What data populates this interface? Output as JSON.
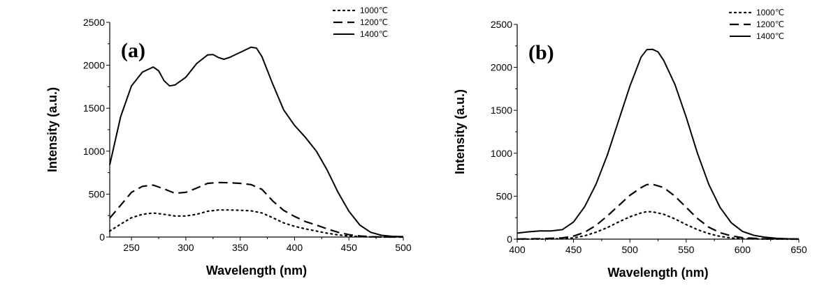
{
  "chart_data": [
    {
      "type": "line",
      "panel_label": "(a)",
      "xlabel": "Wavelength (nm)",
      "ylabel": "Intensity (a.u.)",
      "xlim": [
        230,
        500
      ],
      "ylim": [
        0,
        2500
      ],
      "xticks": [
        250,
        300,
        350,
        400,
        450,
        500
      ],
      "yticks": [
        0,
        500,
        1000,
        1500,
        2000,
        2500
      ],
      "legend_position": "top-right",
      "grid": false,
      "series": [
        {
          "name": "1000℃",
          "style": "dotted",
          "points": [
            [
              230,
              70
            ],
            [
              240,
              150
            ],
            [
              250,
              225
            ],
            [
              260,
              265
            ],
            [
              270,
              280
            ],
            [
              280,
              265
            ],
            [
              290,
              245
            ],
            [
              300,
              245
            ],
            [
              310,
              265
            ],
            [
              320,
              300
            ],
            [
              330,
              315
            ],
            [
              340,
              315
            ],
            [
              350,
              312
            ],
            [
              360,
              305
            ],
            [
              370,
              280
            ],
            [
              380,
              225
            ],
            [
              390,
              165
            ],
            [
              400,
              125
            ],
            [
              410,
              95
            ],
            [
              420,
              70
            ],
            [
              430,
              45
            ],
            [
              440,
              25
            ],
            [
              450,
              12
            ],
            [
              460,
              5
            ],
            [
              470,
              2
            ],
            [
              480,
              0
            ],
            [
              490,
              0
            ],
            [
              500,
              0
            ]
          ]
        },
        {
          "name": "1200℃",
          "style": "dashed",
          "points": [
            [
              230,
              220
            ],
            [
              240,
              370
            ],
            [
              250,
              520
            ],
            [
              260,
              590
            ],
            [
              270,
              605
            ],
            [
              280,
              560
            ],
            [
              290,
              510
            ],
            [
              300,
              520
            ],
            [
              310,
              570
            ],
            [
              320,
              625
            ],
            [
              330,
              635
            ],
            [
              340,
              632
            ],
            [
              350,
              625
            ],
            [
              360,
              610
            ],
            [
              370,
              555
            ],
            [
              380,
              420
            ],
            [
              390,
              310
            ],
            [
              400,
              240
            ],
            [
              410,
              180
            ],
            [
              420,
              140
            ],
            [
              430,
              95
            ],
            [
              440,
              55
            ],
            [
              450,
              28
            ],
            [
              460,
              12
            ],
            [
              470,
              4
            ],
            [
              480,
              1
            ],
            [
              490,
              0
            ],
            [
              500,
              0
            ]
          ]
        },
        {
          "name": "1400℃",
          "style": "solid",
          "points": [
            [
              230,
              840
            ],
            [
              240,
              1400
            ],
            [
              250,
              1760
            ],
            [
              260,
              1920
            ],
            [
              270,
              1980
            ],
            [
              275,
              1935
            ],
            [
              280,
              1820
            ],
            [
              285,
              1760
            ],
            [
              290,
              1770
            ],
            [
              300,
              1860
            ],
            [
              310,
              2020
            ],
            [
              320,
              2120
            ],
            [
              325,
              2125
            ],
            [
              330,
              2090
            ],
            [
              335,
              2070
            ],
            [
              340,
              2090
            ],
            [
              350,
              2150
            ],
            [
              360,
              2210
            ],
            [
              365,
              2200
            ],
            [
              370,
              2100
            ],
            [
              380,
              1780
            ],
            [
              390,
              1480
            ],
            [
              400,
              1300
            ],
            [
              410,
              1160
            ],
            [
              420,
              1000
            ],
            [
              430,
              780
            ],
            [
              440,
              520
            ],
            [
              450,
              300
            ],
            [
              460,
              140
            ],
            [
              470,
              55
            ],
            [
              480,
              20
            ],
            [
              490,
              8
            ],
            [
              500,
              5
            ]
          ]
        }
      ]
    },
    {
      "type": "line",
      "panel_label": "(b)",
      "xlabel": "Wavelength (nm)",
      "ylabel": "Intensity (a.u.)",
      "xlim": [
        400,
        650
      ],
      "ylim": [
        0,
        2500
      ],
      "xticks": [
        400,
        450,
        500,
        550,
        600,
        650
      ],
      "yticks": [
        0,
        500,
        1000,
        1500,
        2000,
        2500
      ],
      "legend_position": "top-right",
      "grid": false,
      "series": [
        {
          "name": "1000℃",
          "style": "dotted",
          "points": [
            [
              400,
              0
            ],
            [
              420,
              1
            ],
            [
              440,
              5
            ],
            [
              450,
              15
            ],
            [
              460,
              40
            ],
            [
              470,
              80
            ],
            [
              480,
              135
            ],
            [
              490,
              200
            ],
            [
              500,
              260
            ],
            [
              510,
              305
            ],
            [
              515,
              320
            ],
            [
              520,
              318
            ],
            [
              530,
              290
            ],
            [
              540,
              235
            ],
            [
              550,
              170
            ],
            [
              560,
              110
            ],
            [
              570,
              65
            ],
            [
              580,
              32
            ],
            [
              590,
              14
            ],
            [
              600,
              5
            ],
            [
              620,
              1
            ],
            [
              650,
              0
            ]
          ]
        },
        {
          "name": "1200℃",
          "style": "dashed",
          "points": [
            [
              400,
              2
            ],
            [
              420,
              5
            ],
            [
              440,
              15
            ],
            [
              450,
              35
            ],
            [
              460,
              80
            ],
            [
              470,
              160
            ],
            [
              480,
              270
            ],
            [
              490,
              390
            ],
            [
              500,
              510
            ],
            [
              510,
              600
            ],
            [
              515,
              635
            ],
            [
              520,
              640
            ],
            [
              530,
              600
            ],
            [
              540,
              500
            ],
            [
              550,
              370
            ],
            [
              560,
              240
            ],
            [
              570,
              140
            ],
            [
              580,
              75
            ],
            [
              590,
              38
            ],
            [
              600,
              16
            ],
            [
              620,
              3
            ],
            [
              650,
              0
            ]
          ]
        },
        {
          "name": "1400℃",
          "style": "solid",
          "points": [
            [
              400,
              70
            ],
            [
              410,
              85
            ],
            [
              420,
              95
            ],
            [
              430,
              95
            ],
            [
              440,
              110
            ],
            [
              450,
              200
            ],
            [
              460,
              380
            ],
            [
              470,
              640
            ],
            [
              480,
              980
            ],
            [
              490,
              1380
            ],
            [
              500,
              1780
            ],
            [
              510,
              2120
            ],
            [
              515,
              2205
            ],
            [
              520,
              2210
            ],
            [
              525,
              2180
            ],
            [
              530,
              2080
            ],
            [
              540,
              1800
            ],
            [
              550,
              1420
            ],
            [
              560,
              1000
            ],
            [
              570,
              640
            ],
            [
              580,
              370
            ],
            [
              590,
              190
            ],
            [
              600,
              90
            ],
            [
              610,
              45
            ],
            [
              620,
              22
            ],
            [
              630,
              10
            ],
            [
              640,
              4
            ],
            [
              650,
              2
            ]
          ]
        }
      ]
    }
  ]
}
